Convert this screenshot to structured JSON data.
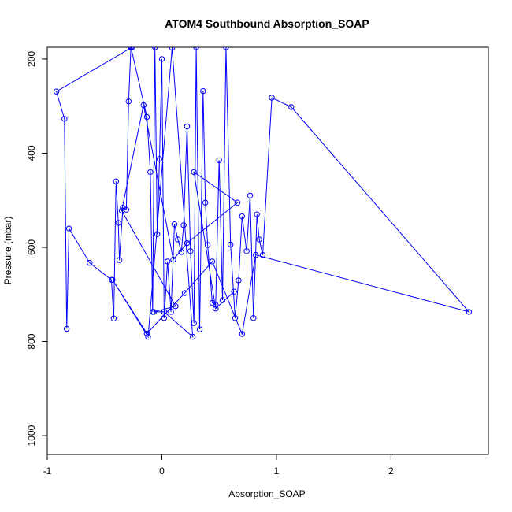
{
  "chart_data": {
    "type": "line",
    "title": "ATOM4 Southbound Absorption_SOAP",
    "xlabel": "Absorption_SOAP",
    "ylabel": "Pressure (mbar)",
    "xlim": [
      -1.0,
      2.85
    ],
    "ylim": [
      1040,
      175
    ],
    "y_reversed": true,
    "xticks": [
      -1,
      0,
      1,
      2
    ],
    "xtick_labels": [
      "-1",
      "0",
      "1",
      "2"
    ],
    "yticks": [
      200,
      400,
      600,
      800,
      1000
    ],
    "ytick_labels": [
      "200",
      "400",
      "600",
      "800",
      "1000"
    ],
    "series_color": "#0000ff",
    "grid": false,
    "legend": "none",
    "series": [
      {
        "x": [
          -0.26,
          -0.92,
          -0.85,
          -0.83,
          -0.81,
          -0.63,
          -0.44,
          -0.42,
          -0.4,
          -0.38,
          -0.37,
          -0.34,
          -0.31,
          -0.29,
          -0.27,
          -0.13,
          -0.1,
          -0.08,
          -0.06,
          -0.04,
          -0.02,
          0.0,
          0.02,
          0.05,
          0.08,
          0.11,
          0.14,
          0.17,
          0.19,
          0.22,
          0.25,
          0.28,
          0.3,
          0.33,
          0.36,
          0.38,
          0.4,
          0.44,
          0.47,
          0.5,
          0.53,
          0.56,
          0.6,
          0.64,
          0.67,
          0.7,
          0.74,
          0.77,
          0.8,
          0.83,
          0.85,
          0.88,
          0.96,
          1.13,
          2.68,
          0.82,
          0.7,
          0.44,
          0.2,
          -0.13,
          -0.43,
          -0.12,
          0.09,
          0.27,
          0.02,
          -0.07,
          0.12,
          -0.35,
          -0.16,
          0.1,
          0.22,
          0.66,
          0.28,
          0.47,
          0.63
        ],
        "y": [
          175,
          269,
          327,
          773,
          560,
          633,
          669,
          751,
          460,
          548,
          627,
          516,
          520,
          290,
          175,
          323,
          440,
          737,
          175,
          572,
          412,
          200,
          750,
          630,
          737,
          551,
          583,
          610,
          553,
          343,
          608,
          761,
          175,
          774,
          268,
          505,
          595,
          718,
          722,
          415,
          712,
          175,
          594,
          750,
          670,
          534,
          608,
          490,
          750,
          530,
          583,
          616,
          282,
          302,
          737,
          616,
          784,
          630,
          697,
          783,
          669,
          790,
          176,
          790,
          737,
          737,
          725,
          522,
          298,
          626,
          591,
          505,
          440,
          730,
          694
        ]
      }
    ]
  }
}
